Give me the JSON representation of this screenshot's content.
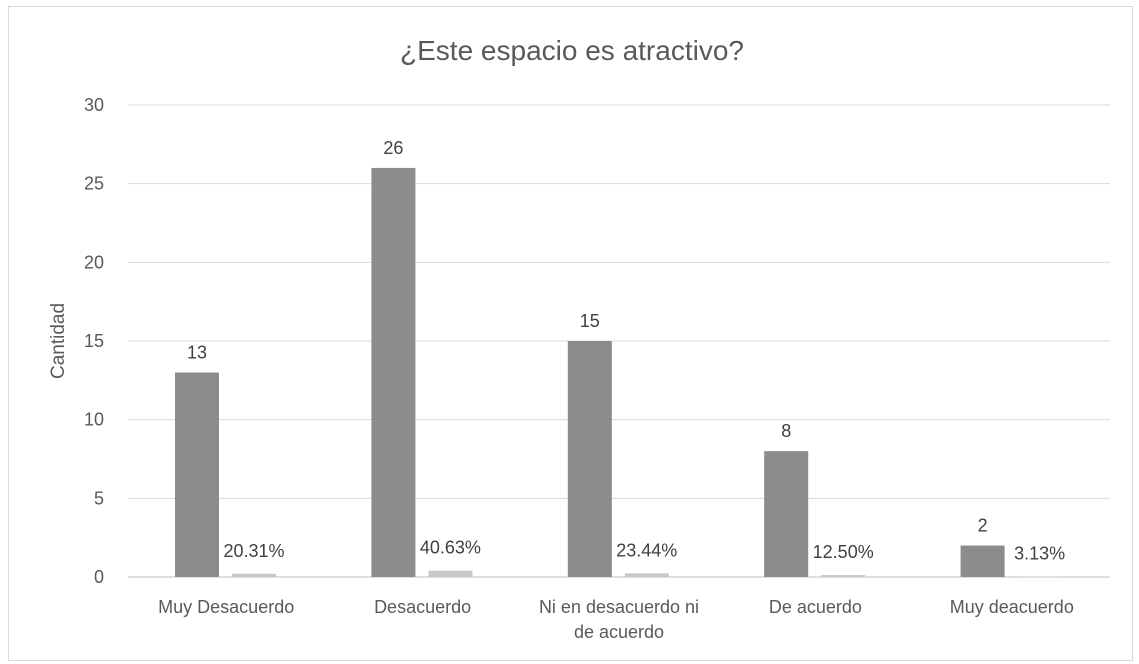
{
  "chart_data": {
    "type": "bar",
    "title": "¿Este espacio es atractivo?",
    "ylabel": "Cantidad",
    "xlabel": "",
    "ylim": [
      0,
      30
    ],
    "yticks": [
      0,
      5,
      10,
      15,
      20,
      25,
      30
    ],
    "grid": true,
    "categories": [
      [
        "Muy Desacuerdo"
      ],
      [
        "Desacuerdo"
      ],
      [
        "Ni en desacuerdo ni",
        "de acuerdo"
      ],
      [
        "De acuerdo"
      ],
      [
        "Muy deacuerdo"
      ]
    ],
    "series": [
      {
        "values": [
          13,
          26,
          15,
          8,
          2
        ],
        "labels": [
          "13",
          "26",
          "15",
          "8",
          "2"
        ],
        "color": "#8c8c8c"
      },
      {
        "values": [
          0.2031,
          0.4063,
          0.2344,
          0.125,
          0.0313
        ],
        "labels": [
          "20.31%",
          "40.63%",
          "23.44%",
          "12.50%",
          "3.13%"
        ],
        "color": "#c8c8c8"
      }
    ]
  }
}
